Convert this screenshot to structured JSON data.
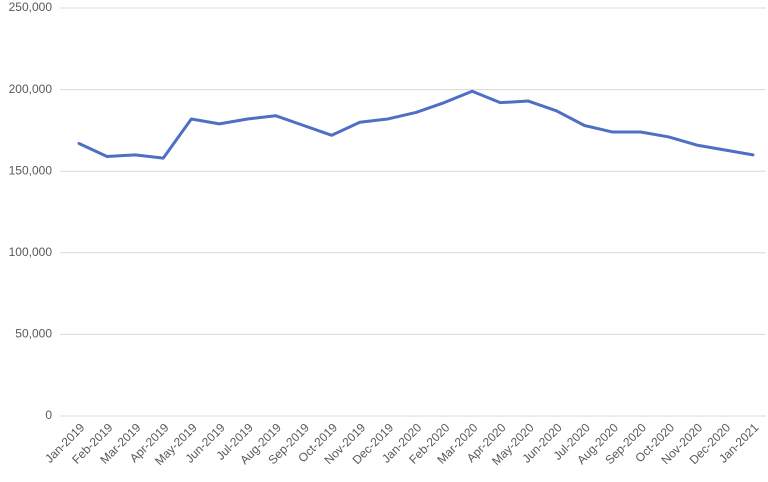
{
  "chart_data": {
    "type": "line",
    "categories": [
      "Jan-2019",
      "Feb-2019",
      "Mar-2019",
      "Apr-2019",
      "May-2019",
      "Jun-2019",
      "Jul-2019",
      "Aug-2019",
      "Sep-2019",
      "Oct-2019",
      "Nov-2019",
      "Dec-2019",
      "Jan-2020",
      "Feb-2020",
      "Mar-2020",
      "Apr-2020",
      "May-2020",
      "Jun-2020",
      "Jul-2020",
      "Aug-2020",
      "Sep-2020",
      "Oct-2020",
      "Nov-2020",
      "Dec-2020",
      "Jan-2021"
    ],
    "values": [
      167000,
      159000,
      160000,
      158000,
      182000,
      179000,
      182000,
      184000,
      178000,
      172000,
      180000,
      182000,
      186000,
      192000,
      199000,
      192000,
      193000,
      187000,
      178000,
      174000,
      174000,
      171000,
      166000,
      163000,
      160000
    ],
    "color": "#4f6fc4",
    "ylim": [
      0,
      250000
    ],
    "yticks": [
      0,
      {
        "value": 50000,
        "label": "50,000"
      },
      {
        "value": 100000,
        "label": "100,000"
      },
      {
        "value": 150000,
        "label": "150,000"
      },
      {
        "value": 200000,
        "label": "200,000"
      },
      {
        "value": 250000,
        "label": "250,000"
      }
    ],
    "grid": true
  }
}
